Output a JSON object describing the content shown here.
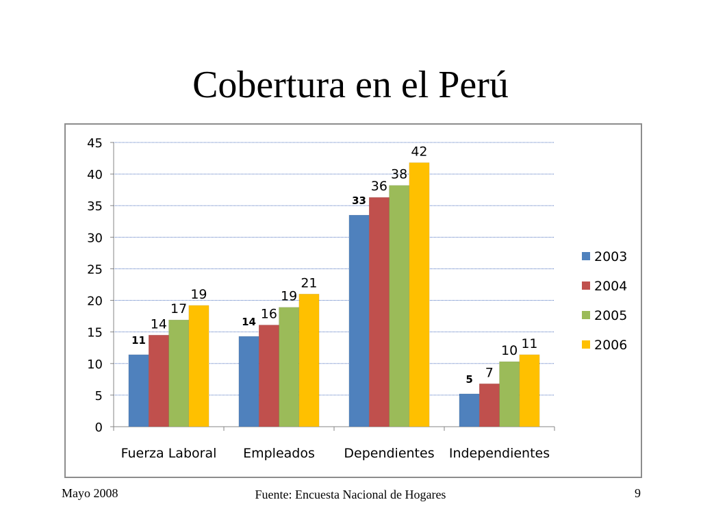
{
  "slide": {
    "title": "Cobertura en el Perú",
    "footer_left": "Mayo 2008",
    "footer_center": "Fuente: Encuesta Nacional de Hogares",
    "footer_right": "9"
  },
  "chart_data": {
    "type": "bar",
    "categories": [
      "Fuerza Laboral",
      "Empleados",
      "Dependientes",
      "Independientes"
    ],
    "series": [
      {
        "name": "2003",
        "color": "#4f81bd",
        "values": [
          11.4,
          14.3,
          33.5,
          5.2
        ],
        "labels": [
          "11",
          "14",
          "33",
          "5"
        ]
      },
      {
        "name": "2004",
        "color": "#c0504d",
        "values": [
          14.5,
          16.1,
          36.3,
          6.8
        ],
        "labels": [
          "14",
          "16",
          "36",
          "7"
        ]
      },
      {
        "name": "2005",
        "color": "#9bbb59",
        "values": [
          16.9,
          18.9,
          38.2,
          10.3
        ],
        "labels": [
          "17",
          "19",
          "38",
          "10"
        ]
      },
      {
        "name": "2006",
        "color": "#ffc000",
        "values": [
          19.2,
          21.0,
          41.8,
          11.4
        ],
        "labels": [
          "19",
          "21",
          "42",
          "11"
        ]
      }
    ],
    "ylim": [
      0,
      45
    ],
    "yticks": [
      0,
      5,
      10,
      15,
      20,
      25,
      30,
      35,
      40,
      45
    ],
    "grid": true,
    "legend_position": "right"
  }
}
